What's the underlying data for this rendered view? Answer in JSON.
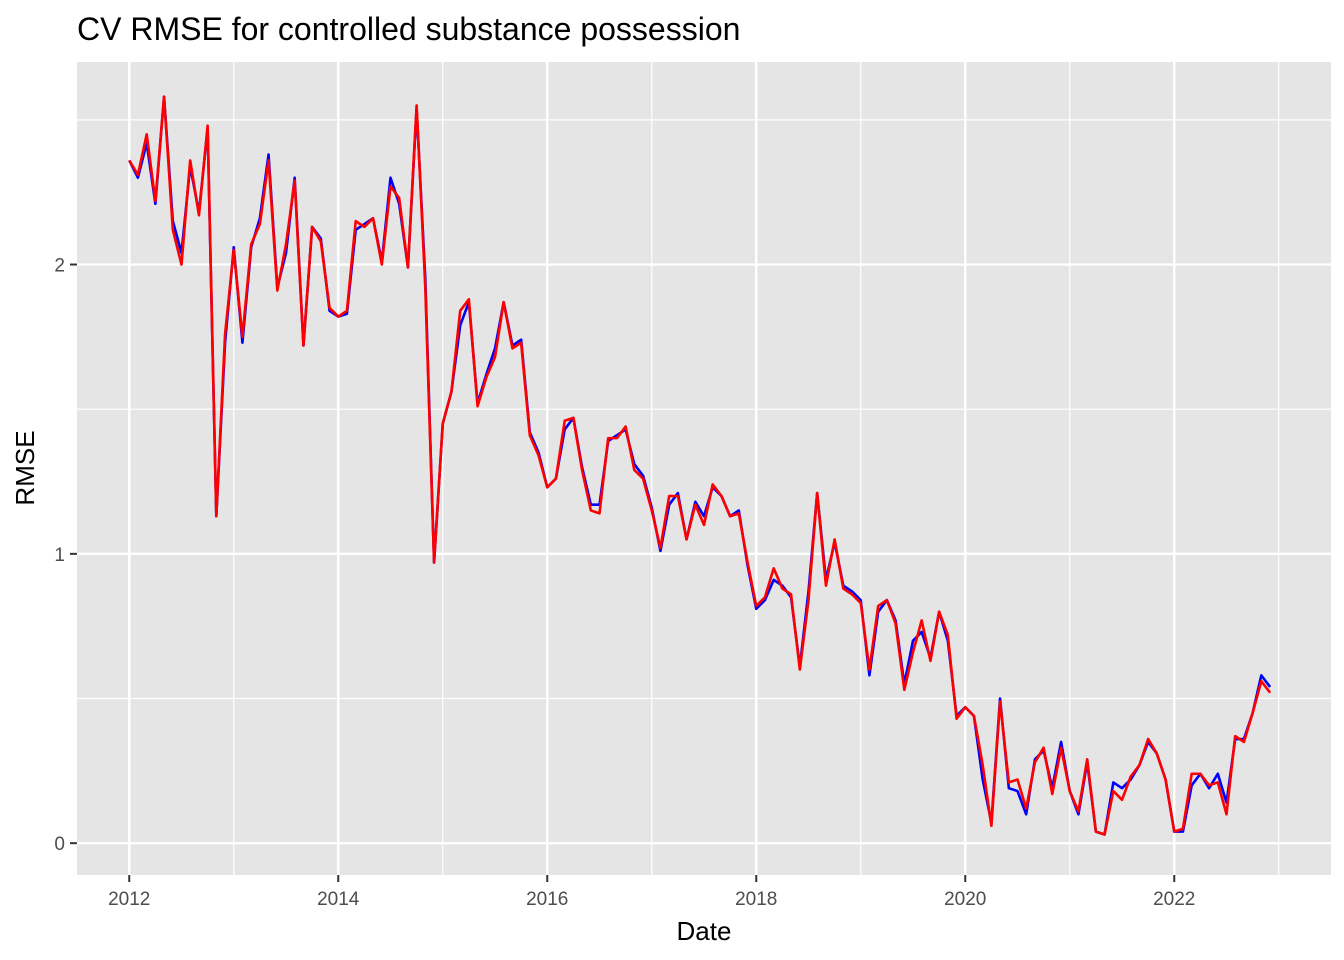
{
  "chart_data": {
    "type": "line",
    "title": "CV RMSE for controlled substance possession",
    "xlabel": "Date",
    "ylabel": "RMSE",
    "xlim": [
      2011.5,
      2023.5
    ],
    "ylim": [
      -0.11,
      2.7
    ],
    "x_ticks": [
      2012,
      2014,
      2016,
      2018,
      2020,
      2022
    ],
    "x_tick_labels": [
      "2012",
      "2014",
      "2016",
      "2018",
      "2020",
      "2022"
    ],
    "y_ticks": [
      0,
      1,
      2
    ],
    "y_tick_labels": [
      "0",
      "1",
      "2"
    ],
    "grid": true,
    "legend": "none",
    "colors": {
      "panel": "#e5e5e5",
      "grid": "#ffffff"
    },
    "x": [
      2012.0,
      2012.083,
      2012.167,
      2012.25,
      2012.333,
      2012.417,
      2012.5,
      2012.583,
      2012.667,
      2012.75,
      2012.833,
      2012.917,
      2013.0,
      2013.083,
      2013.167,
      2013.25,
      2013.333,
      2013.417,
      2013.5,
      2013.583,
      2013.667,
      2013.75,
      2013.833,
      2013.917,
      2014.0,
      2014.083,
      2014.167,
      2014.25,
      2014.333,
      2014.417,
      2014.5,
      2014.583,
      2014.667,
      2014.75,
      2014.833,
      2014.917,
      2015.0,
      2015.083,
      2015.167,
      2015.25,
      2015.333,
      2015.417,
      2015.5,
      2015.583,
      2015.667,
      2015.75,
      2015.833,
      2015.917,
      2016.0,
      2016.083,
      2016.167,
      2016.25,
      2016.333,
      2016.417,
      2016.5,
      2016.583,
      2016.667,
      2016.75,
      2016.833,
      2016.917,
      2017.0,
      2017.083,
      2017.167,
      2017.25,
      2017.333,
      2017.417,
      2017.5,
      2017.583,
      2017.667,
      2017.75,
      2017.833,
      2017.917,
      2018.0,
      2018.083,
      2018.167,
      2018.25,
      2018.333,
      2018.417,
      2018.5,
      2018.583,
      2018.667,
      2018.75,
      2018.833,
      2018.917,
      2019.0,
      2019.083,
      2019.167,
      2019.25,
      2019.333,
      2019.417,
      2019.5,
      2019.583,
      2019.667,
      2019.75,
      2019.833,
      2019.917,
      2020.0,
      2020.083,
      2020.167,
      2020.25,
      2020.333,
      2020.417,
      2020.5,
      2020.583,
      2020.667,
      2020.75,
      2020.833,
      2020.917,
      2021.0,
      2021.083,
      2021.167,
      2021.25,
      2021.333,
      2021.417,
      2021.5,
      2021.583,
      2021.667,
      2021.75,
      2021.833,
      2021.917,
      2022.0,
      2022.083,
      2022.167,
      2022.25,
      2022.333,
      2022.417,
      2022.5,
      2022.583,
      2022.667,
      2022.75,
      2022.833,
      2022.917
    ],
    "series": [
      {
        "color": "#0000ff",
        "values": [
          2.36,
          2.3,
          2.42,
          2.21,
          2.58,
          2.15,
          2.04,
          2.34,
          2.18,
          2.47,
          1.13,
          1.73,
          2.06,
          1.73,
          2.06,
          2.16,
          2.38,
          1.92,
          2.04,
          2.3,
          1.72,
          2.13,
          2.09,
          1.84,
          1.82,
          1.83,
          2.12,
          2.14,
          2.16,
          2.01,
          2.3,
          2.21,
          1.99,
          2.54,
          1.95,
          0.97,
          1.45,
          1.56,
          1.79,
          1.87,
          1.52,
          1.62,
          1.71,
          1.87,
          1.72,
          1.74,
          1.42,
          1.35,
          1.23,
          1.26,
          1.43,
          1.47,
          1.3,
          1.17,
          1.17,
          1.39,
          1.41,
          1.43,
          1.31,
          1.27,
          1.16,
          1.01,
          1.17,
          1.21,
          1.05,
          1.18,
          1.13,
          1.23,
          1.2,
          1.13,
          1.15,
          0.96,
          0.81,
          0.84,
          0.91,
          0.89,
          0.85,
          0.61,
          0.87,
          1.21,
          0.91,
          1.04,
          0.89,
          0.87,
          0.84,
          0.58,
          0.8,
          0.84,
          0.77,
          0.55,
          0.7,
          0.73,
          0.64,
          0.8,
          0.7,
          0.44,
          0.47,
          0.44,
          0.22,
          0.07,
          0.5,
          0.19,
          0.18,
          0.1,
          0.29,
          0.32,
          0.19,
          0.35,
          0.18,
          0.1,
          0.28,
          0.04,
          0.03,
          0.21,
          0.19,
          0.22,
          0.27,
          0.35,
          0.31,
          0.22,
          0.04,
          0.04,
          0.2,
          0.24,
          0.19,
          0.24,
          0.14,
          0.36,
          0.36,
          0.45,
          0.58,
          0.54
        ]
      },
      {
        "color": "#ff0000",
        "values": [
          2.36,
          2.31,
          2.45,
          2.22,
          2.58,
          2.12,
          2.0,
          2.36,
          2.17,
          2.48,
          1.13,
          1.76,
          2.05,
          1.75,
          2.07,
          2.14,
          2.36,
          1.91,
          2.07,
          2.29,
          1.72,
          2.13,
          2.08,
          1.85,
          1.82,
          1.84,
          2.15,
          2.13,
          2.16,
          2.0,
          2.27,
          2.23,
          1.99,
          2.55,
          1.92,
          0.97,
          1.45,
          1.56,
          1.84,
          1.88,
          1.51,
          1.61,
          1.68,
          1.87,
          1.71,
          1.73,
          1.41,
          1.34,
          1.23,
          1.26,
          1.46,
          1.47,
          1.29,
          1.15,
          1.14,
          1.4,
          1.4,
          1.44,
          1.29,
          1.26,
          1.15,
          1.02,
          1.2,
          1.2,
          1.05,
          1.17,
          1.1,
          1.24,
          1.2,
          1.13,
          1.14,
          0.97,
          0.82,
          0.85,
          0.95,
          0.88,
          0.86,
          0.6,
          0.84,
          1.21,
          0.89,
          1.05,
          0.88,
          0.86,
          0.83,
          0.6,
          0.82,
          0.84,
          0.76,
          0.53,
          0.66,
          0.77,
          0.63,
          0.8,
          0.72,
          0.43,
          0.47,
          0.44,
          0.27,
          0.06,
          0.49,
          0.21,
          0.22,
          0.12,
          0.28,
          0.33,
          0.17,
          0.33,
          0.18,
          0.11,
          0.29,
          0.04,
          0.03,
          0.18,
          0.15,
          0.23,
          0.27,
          0.36,
          0.31,
          0.22,
          0.04,
          0.05,
          0.24,
          0.24,
          0.2,
          0.21,
          0.1,
          0.37,
          0.35,
          0.45,
          0.56,
          0.52
        ]
      }
    ]
  }
}
